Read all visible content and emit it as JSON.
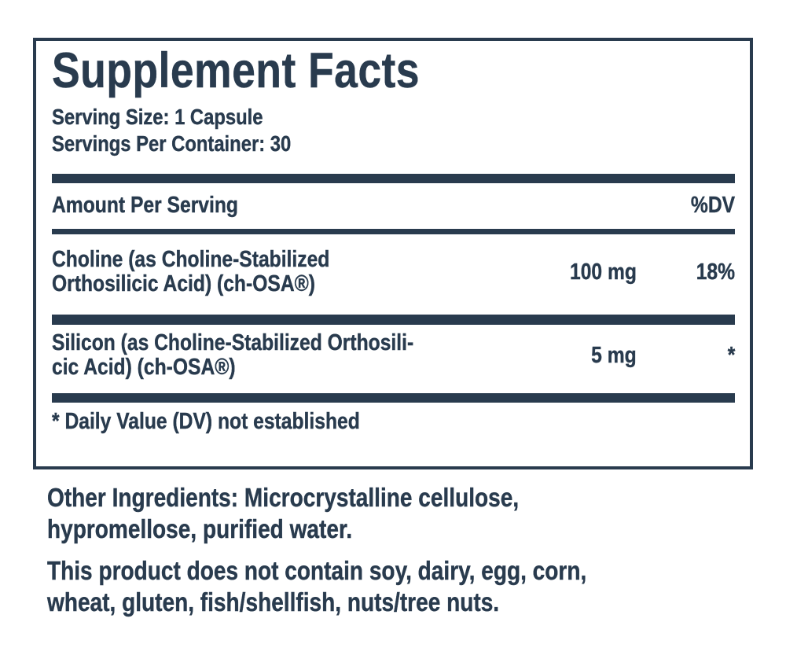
{
  "colors": {
    "ink": "#293b4e",
    "background": "#ffffff"
  },
  "panel": {
    "title": "Supplement Facts",
    "serving_size": "Serving Size: 1 Capsule",
    "servings_per_container": "Servings Per Container: 30",
    "columns": {
      "amount_header": "Amount Per Serving",
      "dv_header": "%DV"
    },
    "rows": [
      {
        "name_line1": "Choline (as Choline-Stabilized",
        "name_line2": "Orthosilicic Acid) (ch-OSA®)",
        "amount": "100 mg",
        "daily_value": "18%"
      },
      {
        "name_line1": "Silicon (as Choline-Stabilized Orthosili-",
        "name_line2": "cic Acid) (ch-OSA®)",
        "amount": "5 mg",
        "daily_value": "*"
      }
    ],
    "footnote": "* Daily Value (DV) not established"
  },
  "other_ingredients": {
    "label": "Other Ingredients:",
    "line1_rest": " Microcrystalline cellulose,",
    "line2": "hypromellose, purified water."
  },
  "contains_statement": {
    "line1": "This product does not contain soy, dairy, egg, corn,",
    "line2": "wheat, gluten, fish/shellfish, nuts/tree nuts."
  }
}
